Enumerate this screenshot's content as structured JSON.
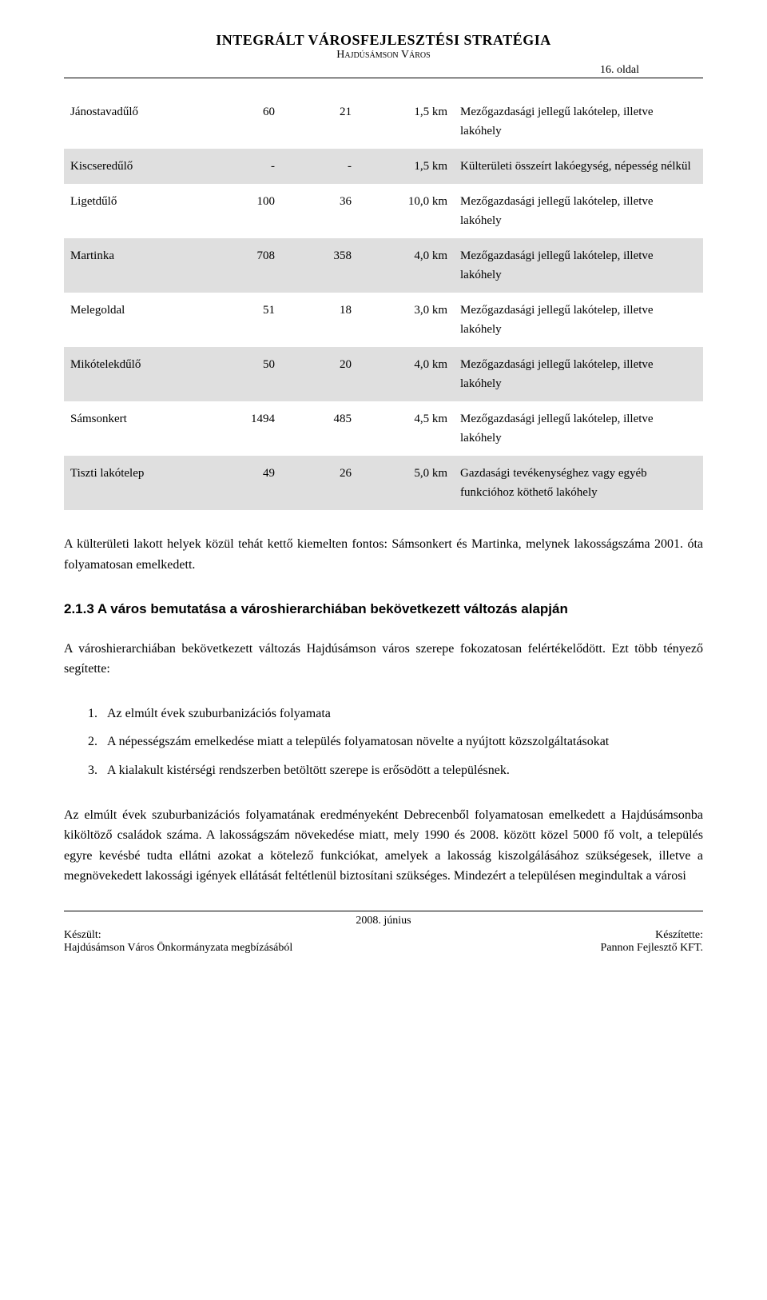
{
  "header": {
    "title": "INTEGRÁLT VÁROSFEJLESZTÉSI STRATÉGIA",
    "subtitle": "Hajdúsámson Város",
    "page_number": "16. oldal"
  },
  "table": {
    "columns": [
      "name",
      "a",
      "b",
      "dist",
      "desc"
    ],
    "col_widths": [
      "22%",
      "12%",
      "12%",
      "15%",
      "39%"
    ],
    "shaded_bg": "#dfdfdf",
    "rows": [
      {
        "shaded": false,
        "name": "Jánostavadűlő",
        "a": "60",
        "b": "21",
        "dist": "1,5 km",
        "desc": "Mezőgazdasági jellegű lakótelep, illetve lakóhely"
      },
      {
        "shaded": true,
        "name": "Kiscseredűlő",
        "a": "-",
        "b": "-",
        "dist": "1,5 km",
        "desc": "Külterületi összeírt lakóegység, népesség nélkül"
      },
      {
        "shaded": false,
        "name": "Ligetdűlő",
        "a": "100",
        "b": "36",
        "dist": "10,0 km",
        "desc": "Mezőgazdasági jellegű lakótelep, illetve lakóhely"
      },
      {
        "shaded": true,
        "name": "Martinka",
        "a": "708",
        "b": "358",
        "dist": "4,0 km",
        "desc": "Mezőgazdasági jellegű lakótelep, illetve lakóhely"
      },
      {
        "shaded": false,
        "name": "Melegoldal",
        "a": "51",
        "b": "18",
        "dist": "3,0 km",
        "desc": "Mezőgazdasági jellegű lakótelep, illetve lakóhely"
      },
      {
        "shaded": true,
        "name": "Mikótelekdűlő",
        "a": "50",
        "b": "20",
        "dist": "4,0 km",
        "desc": "Mezőgazdasági jellegű lakótelep, illetve lakóhely"
      },
      {
        "shaded": false,
        "name": "Sámsonkert",
        "a": "1494",
        "b": "485",
        "dist": "4,5 km",
        "desc": "Mezőgazdasági jellegű lakótelep, illetve lakóhely"
      },
      {
        "shaded": true,
        "name": "Tiszti lakótelep",
        "a": "49",
        "b": "26",
        "dist": "5,0 km",
        "desc": "Gazdasági tevékenységhez vagy egyéb funkcióhoz köthető lakóhely"
      }
    ]
  },
  "paragraphs": {
    "intro_after_table": "A külterületi lakott helyek közül tehát kettő kiemelten fontos: Sámsonkert és Martinka, melynek lakosságszáma 2001. óta folyamatosan emelkedett.",
    "after_heading": "A városhierarchiában bekövetkezett változás Hajdúsámson város szerepe fokozatosan felértékelődött. Ezt több tényező segítette:",
    "final": "Az elmúlt évek szuburbanizációs folyamatának eredményeként Debrecenből folyamatosan emelkedett a Hajdúsámsonba kiköltöző családok száma. A lakosságszám növekedése miatt, mely 1990 és 2008. között közel 5000 fő volt, a település egyre kevésbé tudta ellátni azokat a kötelező funkciókat, amelyek a lakosság kiszolgálásához szükségesek, illetve a megnövekedett lakossági igények ellátását feltétlenül biztosítani szükséges. Mindezért a településen megindultak a városi"
  },
  "section": {
    "number": "2.1.3",
    "title": "A város bemutatása a városhierarchiában bekövetkezett változás alapján"
  },
  "list": {
    "items": [
      {
        "num": "1.",
        "text": "Az elmúlt évek szuburbanizációs folyamata"
      },
      {
        "num": "2.",
        "text": "A népességszám emelkedése miatt a település folyamatosan növelte a nyújtott közszolgáltatásokat"
      },
      {
        "num": "3.",
        "text": "A kialakult kistérségi rendszerben betöltött szerepe is erősödött a településnek."
      }
    ]
  },
  "footer": {
    "date": "2008. június",
    "left_label": "Készült:",
    "left_text": "Hajdúsámson Város Önkormányzata megbízásából",
    "right_label": "Készítette:",
    "right_text": "Pannon Fejlesztő KFT."
  },
  "style": {
    "body_font": "Garamond",
    "heading_font": "Arial",
    "background": "#ffffff",
    "text_color": "#000000"
  }
}
